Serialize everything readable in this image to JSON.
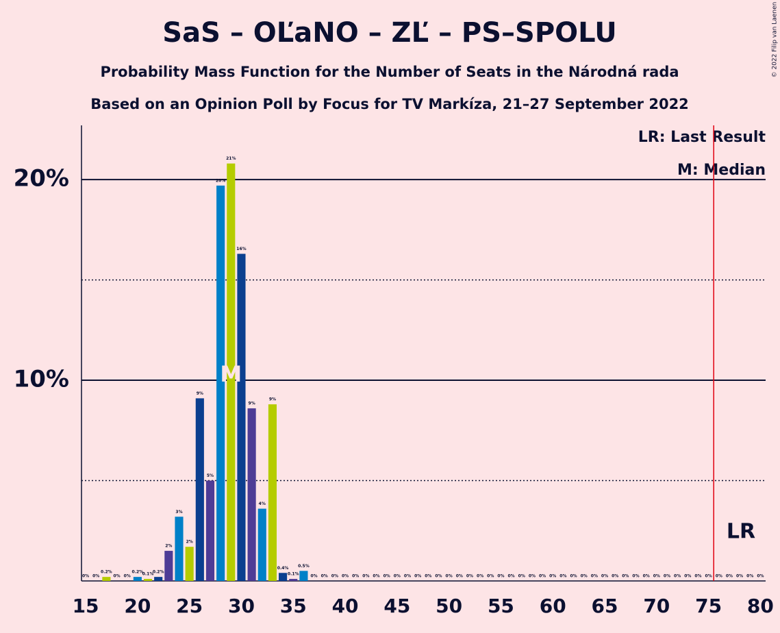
{
  "chart_data": {
    "type": "bar",
    "title": "SaS – OĽaNO – ZĽ – PS–SPOLU",
    "subtitle": "Probability Mass Function for the Number of Seats in the Národná rada",
    "subtitle2": "Based on an Opinion Poll by Focus for TV Markíza, 21–27 September 2022",
    "copyright": "© 2022 Filip van Laenen",
    "x": [
      15,
      16,
      17,
      18,
      19,
      20,
      21,
      22,
      23,
      24,
      25,
      26,
      27,
      28,
      29,
      30,
      31,
      32,
      33,
      34,
      35,
      36,
      37,
      38,
      39,
      40,
      41,
      42,
      43,
      44,
      45,
      46,
      47,
      48,
      49,
      50,
      51,
      52,
      53,
      54,
      55,
      56,
      57,
      58,
      59,
      60,
      61,
      62,
      63,
      64,
      65,
      66,
      67,
      68,
      69,
      70,
      71,
      72,
      73,
      74,
      75,
      76,
      77,
      78,
      79,
      80
    ],
    "values": [
      0,
      0,
      0.2,
      0,
      0,
      0.2,
      0.1,
      0.2,
      1.5,
      3.2,
      1.7,
      9.1,
      5.0,
      19.7,
      20.8,
      16.3,
      8.6,
      3.6,
      8.8,
      0.4,
      0.1,
      0.5,
      0,
      0,
      0,
      0,
      0,
      0,
      0,
      0,
      0,
      0,
      0,
      0,
      0,
      0,
      0,
      0,
      0,
      0,
      0,
      0,
      0,
      0,
      0,
      0,
      0,
      0,
      0,
      0,
      0,
      0,
      0,
      0,
      0,
      0,
      0,
      0,
      0,
      0,
      0,
      0,
      0,
      0,
      0,
      0
    ],
    "value_labels": [
      "0%",
      "0%",
      "0.2%",
      "0%",
      "0%",
      "0.2%",
      "0.1%",
      "0.2%",
      "2%",
      "3%",
      "2%",
      "9%",
      "5%",
      "20%",
      "21%",
      "16%",
      "9%",
      "4%",
      "9%",
      "0.4%",
      "0.1%",
      "0.5%",
      "0%",
      "0%",
      "0%",
      "0%",
      "0%",
      "0%",
      "0%",
      "0%",
      "0%",
      "0%",
      "0%",
      "0%",
      "0%",
      "0%",
      "0%",
      "0%",
      "0%",
      "0%",
      "0%",
      "0%",
      "0%",
      "0%",
      "0%",
      "0%",
      "0%",
      "0%",
      "0%",
      "0%",
      "0%",
      "0%",
      "0%",
      "0%",
      "0%",
      "0%",
      "0%",
      "0%",
      "0%",
      "0%",
      "0%",
      "0%",
      "0%",
      "0%",
      "0%",
      "0%"
    ],
    "palette": [
      "#4e3c96",
      "#0080c8",
      "#b5cc00",
      "#0b3f8f"
    ],
    "xlim": [
      14.6,
      80.5
    ],
    "xticks": [
      15,
      20,
      25,
      30,
      35,
      40,
      45,
      50,
      55,
      60,
      65,
      70,
      75,
      80
    ],
    "ylim": [
      0,
      22.7
    ],
    "yticks": [
      {
        "value": 10,
        "label": "10%"
      },
      {
        "value": 20,
        "label": "20%"
      }
    ],
    "minor_grid": [
      5,
      15
    ],
    "median": 29,
    "median_label": "M",
    "last_result": 76,
    "last_result_label": "LR",
    "legend": [
      "LR: Last Result",
      "M: Median"
    ]
  }
}
